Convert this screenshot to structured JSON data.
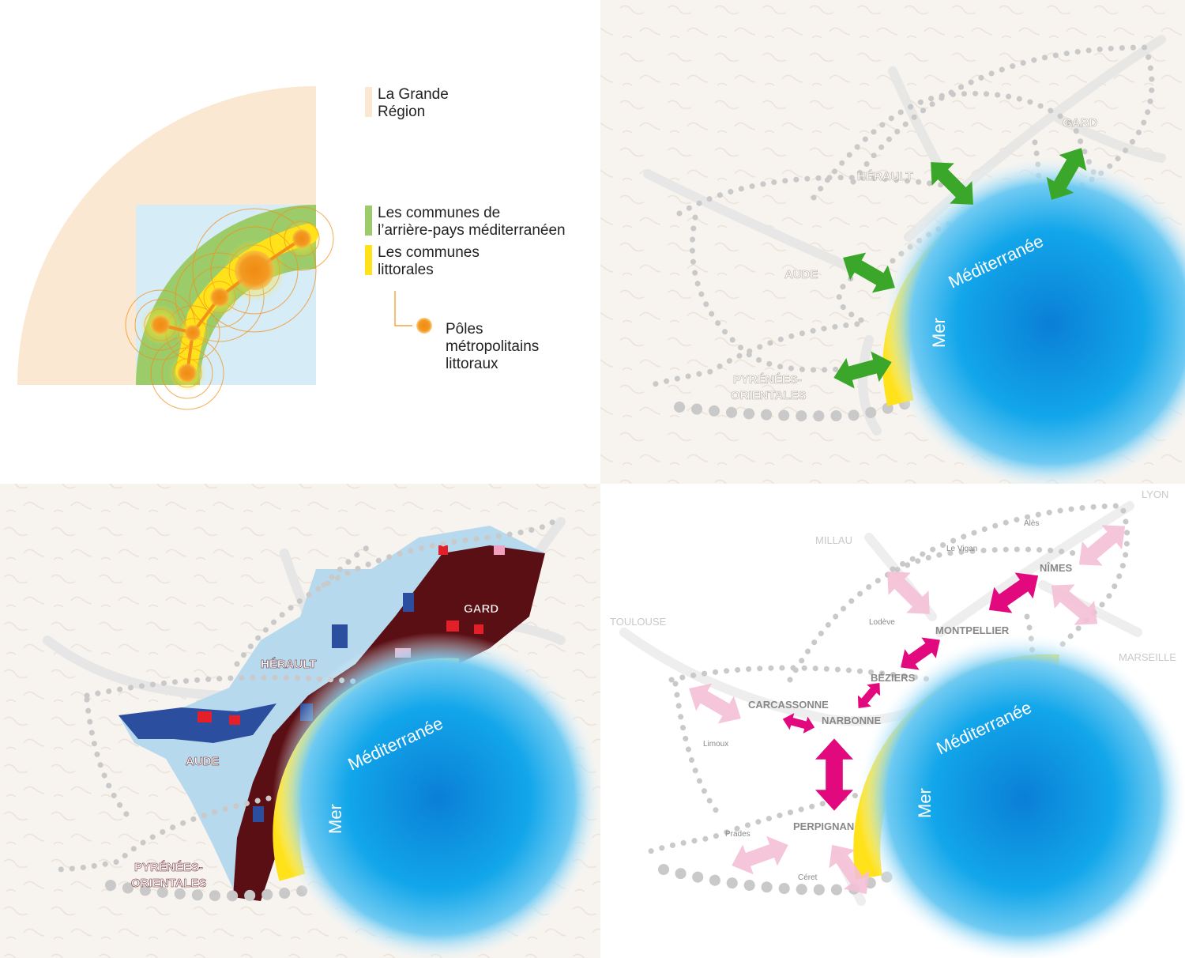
{
  "colors": {
    "region": "#fbe8d2",
    "hinterland": "#9ccb6a",
    "coastal": "#ffe21a",
    "pole": "#f39019",
    "sea_blue": "#bfe3f3",
    "sea_core": "#0aa0e6",
    "arrow_green": "#3aa62a",
    "arrow_magenta": "#e2087e",
    "arrow_pink": "#f4bfd6",
    "dots": "#c9c9c9",
    "maroon": "#5a0f14",
    "commune_light": "#b7d9ee",
    "commune_blue": "#2c4e9e",
    "commune_red": "#e3202a"
  },
  "legend": {
    "region": "La Grande\nRégion",
    "region_line1": "La Grande",
    "region_line2": "Région",
    "hinterland_line1": "Les communes de",
    "hinterland_line2": "l’arrière-pays méditerranéen",
    "coastal_line1": "Les communes",
    "coastal_line2": "littorales",
    "poles_line1": "Pôles",
    "poles_line2": "métropolitains",
    "poles_line3": "littoraux"
  },
  "panel_tr": {
    "departments": [
      "HÉRAULT",
      "GARD",
      "AUDE",
      "PYRÉNÉES-",
      "ORIENTALES"
    ],
    "sea_line1": "Méditerranée",
    "sea_line2": "Mer"
  },
  "panel_bl": {
    "departments": [
      "HÉRAULT",
      "GARD",
      "AUDE",
      "PYRÉNÉES-",
      "ORIENTALES"
    ],
    "sea_line1": "Méditerranée",
    "sea_line2": "Mer"
  },
  "panel_br": {
    "cities": [
      "NÎMES",
      "MONTPELLIER",
      "BÉZIERS",
      "CARCASSONNE",
      "NARBONNE",
      "PERPIGNAN"
    ],
    "towns": [
      "Alès",
      "Le Vigan",
      "Lodève",
      "Limoux",
      "Prades",
      "Céret"
    ],
    "outside": [
      "LYON",
      "MILLAU",
      "TOULOUSE",
      "MARSEILLE"
    ],
    "sea_line1": "Méditerranée",
    "sea_line2": "Mer"
  }
}
